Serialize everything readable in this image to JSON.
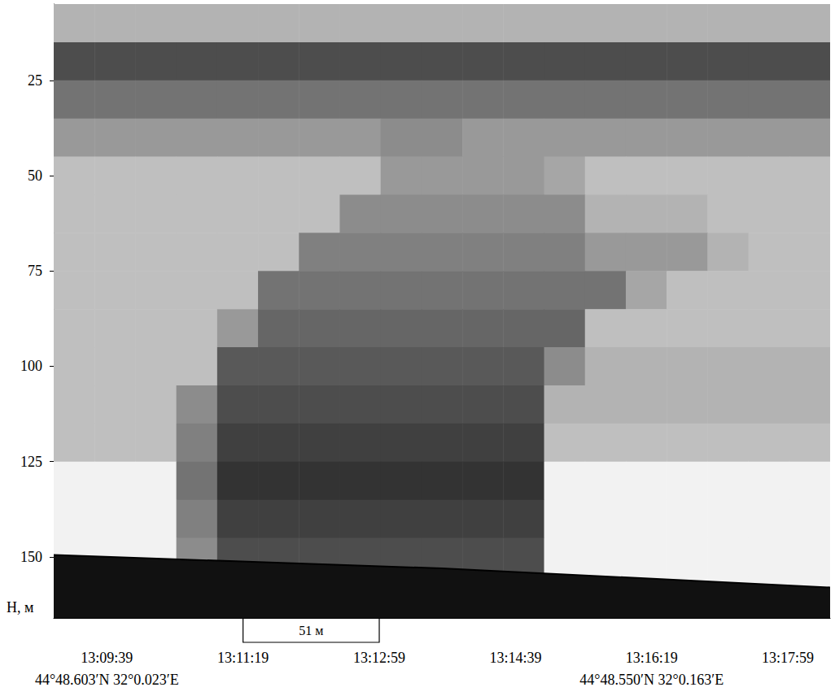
{
  "chart_data": {
    "type": "echogram",
    "y_label": "H, м",
    "xlim": [
      47340,
      47910
    ],
    "xticks": [
      {
        "value": 47379,
        "label": "13:09:39"
      },
      {
        "value": 47479,
        "label": "13:11:19"
      },
      {
        "value": 47579,
        "label": "13:12:59"
      },
      {
        "value": 47679,
        "label": "13:14:39"
      },
      {
        "value": 47779,
        "label": "13:16:19"
      },
      {
        "value": 47879,
        "label": "13:17:59"
      }
    ],
    "ylim": [
      5,
      166
    ],
    "yticks": [
      25,
      50,
      75,
      100,
      125,
      150
    ],
    "grid": false,
    "x_bins": [
      47340,
      47370,
      47400,
      47430,
      47460,
      47490,
      47520,
      47550,
      47580,
      47610,
      47640,
      47670,
      47700,
      47730,
      47760,
      47790,
      47820,
      47850,
      47880,
      47910
    ],
    "y_bins": [
      5,
      15,
      25,
      35,
      45,
      55,
      65,
      75,
      85,
      95,
      105,
      115,
      125,
      135,
      145,
      155,
      165
    ],
    "cells": [
      [
        0.3,
        0.3,
        0.3,
        0.3,
        0.3,
        0.3,
        0.3,
        0.3,
        0.3,
        0.3,
        0.3,
        0.3,
        0.3,
        0.3,
        0.3,
        0.3,
        0.3,
        0.3,
        0.3
      ],
      [
        0.7,
        0.7,
        0.7,
        0.7,
        0.7,
        0.7,
        0.7,
        0.7,
        0.7,
        0.7,
        0.7,
        0.7,
        0.7,
        0.7,
        0.7,
        0.7,
        0.7,
        0.7,
        0.7
      ],
      [
        0.55,
        0.55,
        0.55,
        0.55,
        0.55,
        0.55,
        0.55,
        0.55,
        0.55,
        0.55,
        0.55,
        0.55,
        0.55,
        0.55,
        0.55,
        0.55,
        0.55,
        0.55,
        0.55
      ],
      [
        0.4,
        0.4,
        0.4,
        0.4,
        0.4,
        0.4,
        0.4,
        0.4,
        0.45,
        0.45,
        0.4,
        0.4,
        0.4,
        0.4,
        0.4,
        0.4,
        0.4,
        0.4,
        0.4
      ],
      [
        0.25,
        0.25,
        0.25,
        0.25,
        0.25,
        0.25,
        0.25,
        0.25,
        0.4,
        0.4,
        0.4,
        0.4,
        0.35,
        0.25,
        0.25,
        0.25,
        0.25,
        0.25,
        0.25
      ],
      [
        0.25,
        0.25,
        0.25,
        0.25,
        0.25,
        0.25,
        0.25,
        0.45,
        0.45,
        0.45,
        0.45,
        0.45,
        0.45,
        0.3,
        0.3,
        0.3,
        0.25,
        0.25,
        0.25
      ],
      [
        0.25,
        0.25,
        0.25,
        0.25,
        0.25,
        0.25,
        0.5,
        0.5,
        0.5,
        0.5,
        0.5,
        0.5,
        0.5,
        0.4,
        0.4,
        0.4,
        0.3,
        0.25,
        0.25
      ],
      [
        0.25,
        0.25,
        0.25,
        0.25,
        0.25,
        0.55,
        0.55,
        0.55,
        0.55,
        0.55,
        0.55,
        0.55,
        0.55,
        0.55,
        0.35,
        0.25,
        0.25,
        0.25,
        0.25
      ],
      [
        0.25,
        0.25,
        0.25,
        0.25,
        0.4,
        0.6,
        0.6,
        0.6,
        0.6,
        0.6,
        0.6,
        0.6,
        0.6,
        0.25,
        0.25,
        0.25,
        0.25,
        0.25,
        0.25
      ],
      [
        0.25,
        0.25,
        0.25,
        0.25,
        0.65,
        0.65,
        0.65,
        0.65,
        0.65,
        0.65,
        0.65,
        0.65,
        0.45,
        0.3,
        0.3,
        0.3,
        0.3,
        0.3,
        0.3
      ],
      [
        0.25,
        0.25,
        0.25,
        0.45,
        0.7,
        0.7,
        0.7,
        0.7,
        0.7,
        0.7,
        0.7,
        0.7,
        0.3,
        0.3,
        0.3,
        0.3,
        0.3,
        0.3,
        0.3
      ],
      [
        0.25,
        0.25,
        0.25,
        0.5,
        0.75,
        0.75,
        0.75,
        0.75,
        0.75,
        0.75,
        0.75,
        0.75,
        0.25,
        0.25,
        0.25,
        0.25,
        0.25,
        0.25,
        0.25
      ],
      [
        0.05,
        0.05,
        0.05,
        0.55,
        0.8,
        0.8,
        0.8,
        0.8,
        0.8,
        0.8,
        0.8,
        0.8,
        0.05,
        0.05,
        0.05,
        0.05,
        0.05,
        0.05,
        0.05
      ],
      [
        0.05,
        0.05,
        0.05,
        0.5,
        0.75,
        0.75,
        0.75,
        0.75,
        0.75,
        0.75,
        0.75,
        0.75,
        0.05,
        0.05,
        0.05,
        0.05,
        0.05,
        0.05,
        0.05
      ],
      [
        0.05,
        0.05,
        0.05,
        0.45,
        0.7,
        0.7,
        0.7,
        0.7,
        0.7,
        0.7,
        0.7,
        0.7,
        0.05,
        0.05,
        0.05,
        0.05,
        0.05,
        0.05,
        0.05
      ],
      [
        0.05,
        0.05,
        0.05,
        0.05,
        0.05,
        0.05,
        0.05,
        0.05,
        0.05,
        0.05,
        0.05,
        0.05,
        0.05,
        0.05,
        0.05,
        0.05,
        0.05,
        0.05,
        0.05
      ]
    ],
    "seafloor": {
      "x": [
        47340,
        47625,
        47910
      ],
      "depth": [
        149.5,
        153,
        158
      ]
    },
    "scale_bar": {
      "x": [
        47479,
        47579
      ],
      "label": "51 м"
    },
    "coords": [
      {
        "x": 47379,
        "label": "44°48.603′N 32°0.023′E"
      },
      {
        "x": 47779,
        "label": "44°48.550′N 32°0.163′E"
      }
    ]
  }
}
